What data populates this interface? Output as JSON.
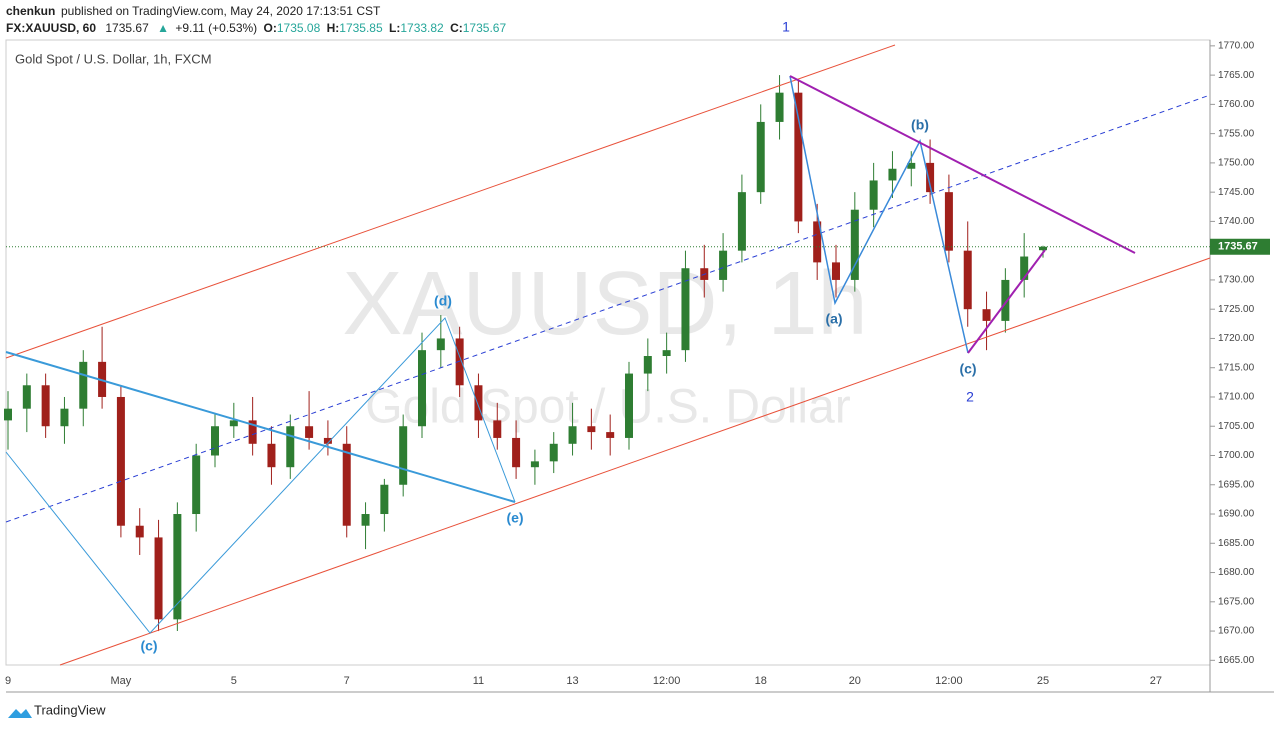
{
  "header": {
    "author": "chenkun",
    "published": "published on TradingView.com, May 24, 2020 17:13:51 CST",
    "symbol": "FX:XAUUSD, 60",
    "last": "1735.67",
    "arrow": "▲",
    "change": "+9.11 (+0.53%)",
    "o_label": "O:",
    "o": "1735.08",
    "h_label": "H:",
    "h": "1735.85",
    "l_label": "L:",
    "l": "1733.82",
    "c_label": "C:",
    "c": "1735.67"
  },
  "legend": "Gold Spot / U.S. Dollar, 1h, FXCM",
  "watermark": {
    "symbol": "XAUUSD, 1h",
    "name": "Gold Spot / U.S. Dollar"
  },
  "waves": [
    "1",
    "(b)",
    "(a)",
    "(c)",
    "2",
    "(d)",
    "(e)",
    "(c)"
  ],
  "footer": "TradingView",
  "chart_data": {
    "type": "candlestick",
    "up_color": "#2e7d32",
    "down_color": "#a0201b",
    "last_price": 1735.67,
    "categories": [
      "9",
      null,
      null,
      null,
      null,
      null,
      "May",
      null,
      null,
      null,
      null,
      null,
      "5",
      null,
      null,
      null,
      null,
      null,
      "7",
      null,
      null,
      null,
      null,
      null,
      null,
      "11",
      null,
      null,
      null,
      null,
      "13",
      null,
      null,
      null,
      null,
      "12:00",
      null,
      null,
      null,
      null,
      "18",
      null,
      null,
      null,
      null,
      "20",
      null,
      null,
      null,
      null,
      "12:00",
      null,
      null,
      null,
      null,
      "25",
      null,
      null,
      null,
      null,
      null,
      "27",
      null
    ],
    "open": [
      1706,
      1708,
      1712,
      1705,
      1708,
      1716,
      1710,
      1688,
      1686,
      1672,
      1690,
      1700,
      1705,
      1706,
      1702,
      1698,
      1705,
      1703,
      1702,
      1688,
      1690,
      1695,
      1705,
      1718,
      1720,
      1712,
      1706,
      1703,
      1698,
      1699,
      1702,
      1705,
      1704,
      1703,
      1714,
      1717,
      1718,
      1732,
      1730,
      1735,
      1745,
      1757,
      1762,
      1740,
      1733,
      1730,
      1742,
      1747,
      1749,
      1750,
      1745,
      1735,
      1725,
      1723,
      1730,
      1735.08,
      null,
      null,
      null,
      null,
      null,
      null,
      null
    ],
    "high": [
      1711,
      1714,
      1714,
      1710,
      1718,
      1722,
      1712,
      1691,
      1689,
      1692,
      1702,
      1707,
      1709,
      1710,
      1705,
      1707,
      1711,
      1706,
      1705,
      1692,
      1696,
      1707,
      1721,
      1724,
      1722,
      1714,
      1709,
      1706,
      1701,
      1704,
      1709,
      1708,
      1707,
      1716,
      1720,
      1721,
      1735,
      1736,
      1738,
      1748,
      1760,
      1765,
      1764,
      1743,
      1736,
      1745,
      1750,
      1752,
      1752,
      1754,
      1748,
      1740,
      1728,
      1732,
      1738,
      1735.85,
      null,
      null,
      null,
      null,
      null,
      null,
      null
    ],
    "low": [
      1701,
      1704,
      1703,
      1702,
      1705,
      1708,
      1686,
      1683,
      1670,
      1670,
      1687,
      1698,
      1703,
      1700,
      1695,
      1696,
      1701,
      1700,
      1686,
      1684,
      1687,
      1693,
      1703,
      1715,
      1710,
      1703,
      1701,
      1696,
      1695,
      1697,
      1700,
      1701,
      1700,
      1701,
      1711,
      1714,
      1716,
      1727,
      1728,
      1733,
      1743,
      1754,
      1738,
      1730,
      1727,
      1728,
      1739,
      1744,
      1746,
      1743,
      1733,
      1722,
      1718,
      1721,
      1727,
      1733.82,
      null,
      null,
      null,
      null,
      null,
      null,
      null
    ],
    "close": [
      1708,
      1712,
      1705,
      1708,
      1716,
      1710,
      1688,
      1686,
      1672,
      1690,
      1700,
      1705,
      1706,
      1702,
      1698,
      1705,
      1703,
      1702,
      1688,
      1690,
      1695,
      1705,
      1718,
      1720,
      1712,
      1706,
      1703,
      1698,
      1699,
      1702,
      1705,
      1704,
      1703,
      1714,
      1717,
      1718,
      1732,
      1730,
      1735,
      1745,
      1757,
      1762,
      1740,
      1733,
      1730,
      1742,
      1747,
      1749,
      1750,
      1745,
      1735,
      1725,
      1723,
      1730,
      1734,
      1735.67,
      null,
      null,
      null,
      null,
      null,
      null,
      null
    ],
    "ylim": [
      1664.2,
      1771
    ],
    "yticks": [
      {
        "value": 1665,
        "label": "1665.00"
      },
      {
        "value": 1670,
        "label": "1670.00"
      },
      {
        "value": 1675,
        "label": "1675.00"
      },
      {
        "value": 1680,
        "label": "1680.00"
      },
      {
        "value": 1685,
        "label": "1685.00"
      },
      {
        "value": 1690,
        "label": "1690.00"
      },
      {
        "value": 1695,
        "label": "1695.00"
      },
      {
        "value": 1700,
        "label": "1700.00"
      },
      {
        "value": 1705,
        "label": "1705.00"
      },
      {
        "value": 1710,
        "label": "1710.00"
      },
      {
        "value": 1715,
        "label": "1715.00"
      },
      {
        "value": 1720,
        "label": "1720.00"
      },
      {
        "value": 1725,
        "label": "1725.00"
      },
      {
        "value": 1730,
        "label": "1730.00"
      },
      {
        "value": 1735,
        "label": "1735.00"
      },
      {
        "value": 1740,
        "label": "1740.00"
      },
      {
        "value": 1745,
        "label": "1745.00"
      },
      {
        "value": 1750,
        "label": "1750.00"
      },
      {
        "value": 1755,
        "label": "1755.00"
      },
      {
        "value": 1760,
        "label": "1760.00"
      },
      {
        "value": 1765,
        "label": "1765.00"
      },
      {
        "value": 1770,
        "label": "1770.00"
      }
    ]
  }
}
